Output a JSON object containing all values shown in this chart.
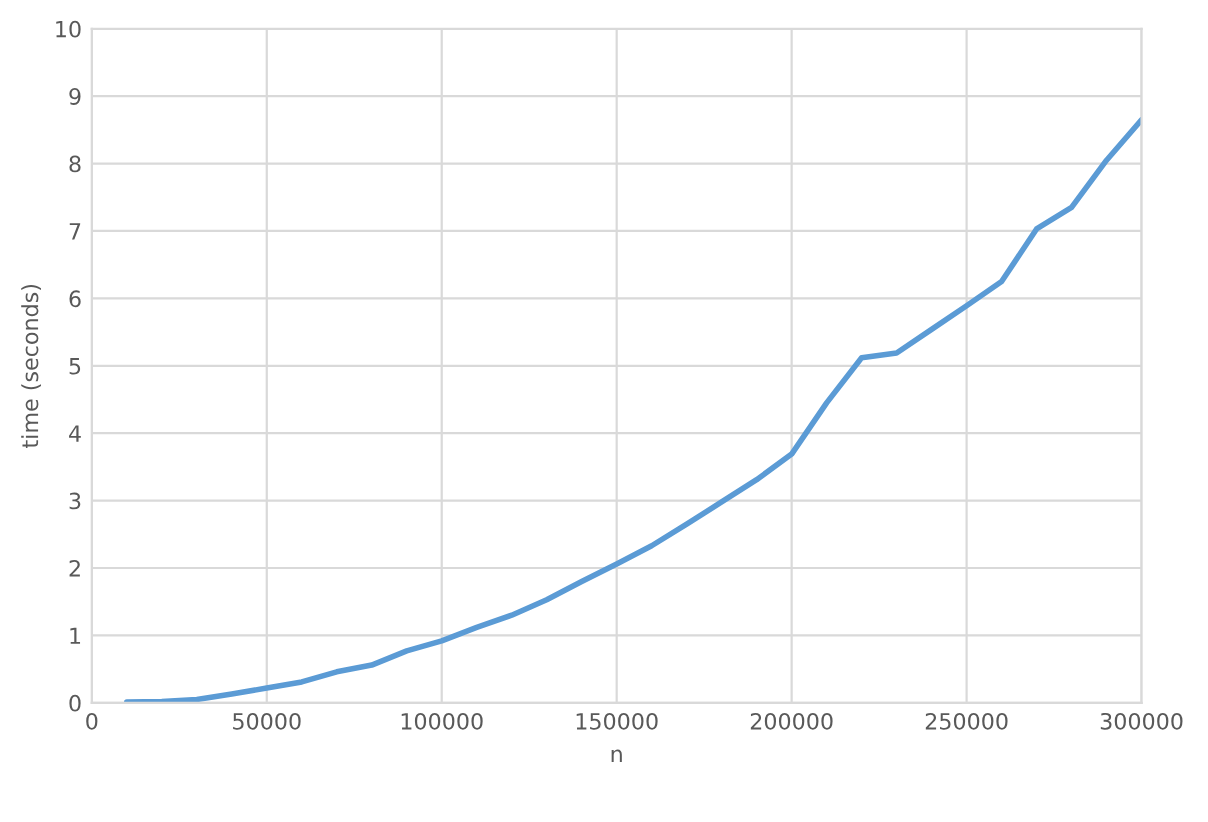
{
  "chart_data": {
    "type": "line",
    "xlabel": "n",
    "ylabel": "time (seconds)",
    "x": [
      10000,
      20000,
      30000,
      40000,
      50000,
      60000,
      70000,
      80000,
      90000,
      100000,
      110000,
      120000,
      130000,
      140000,
      150000,
      160000,
      170000,
      180000,
      190000,
      200000,
      210000,
      220000,
      230000,
      240000,
      250000,
      260000,
      270000,
      280000,
      290000,
      300000
    ],
    "series": [
      {
        "color": "#5b9bd5",
        "values": [
          0.01,
          0.02,
          0.05,
          0.13,
          0.22,
          0.31,
          0.46,
          0.56,
          0.77,
          0.92,
          1.12,
          1.3,
          1.53,
          1.8,
          2.06,
          2.33,
          2.65,
          2.98,
          3.31,
          3.69,
          4.45,
          5.12,
          5.19,
          5.54,
          5.89,
          6.25,
          7.03,
          7.35,
          8.05,
          8.65
        ]
      }
    ],
    "xlim": [
      0,
      300000
    ],
    "xticks": [
      0,
      50000,
      100000,
      150000,
      200000,
      250000,
      300000
    ],
    "ylim": [
      0,
      10
    ],
    "yticks": [
      0,
      1,
      2,
      3,
      4,
      5,
      6,
      7,
      8,
      9,
      10
    ],
    "grid": true,
    "marker": "none",
    "line_style": "solid"
  }
}
